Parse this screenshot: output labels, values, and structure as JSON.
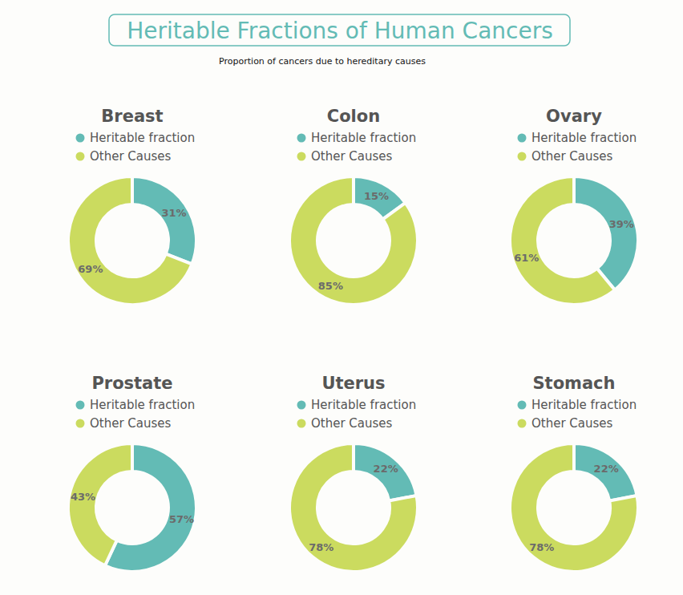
{
  "header": {
    "title": "Heritable Fractions of Human Cancers",
    "subtitle": "Proportion of cancers due to hereditary causes"
  },
  "chart_data": [
    {
      "type": "donut",
      "title": "Breast",
      "categories": [
        "Heritable fraction",
        "Other Causes"
      ],
      "values": [
        31,
        69
      ],
      "value_labels": [
        "31%",
        "69%"
      ],
      "colors": [
        "#63bbb5",
        "#cbdb5f"
      ],
      "data_labels": true,
      "legend": "top"
    },
    {
      "type": "donut",
      "title": "Colon",
      "categories": [
        "Heritable fraction",
        "Other Causes"
      ],
      "values": [
        15,
        85
      ],
      "value_labels": [
        "15%",
        "85%"
      ],
      "colors": [
        "#63bbb5",
        "#cbdb5f"
      ],
      "data_labels": true,
      "legend": "top"
    },
    {
      "type": "donut",
      "title": "Ovary",
      "categories": [
        "Heritable fraction",
        "Other Causes"
      ],
      "values": [
        39,
        61
      ],
      "value_labels": [
        "39%",
        "61%"
      ],
      "colors": [
        "#63bbb5",
        "#cbdb5f"
      ],
      "data_labels": true,
      "legend": "top"
    },
    {
      "type": "donut",
      "title": "Prostate",
      "categories": [
        "Heritable fraction",
        "Other Causes"
      ],
      "values": [
        57,
        43
      ],
      "value_labels": [
        "57%",
        "43%"
      ],
      "colors": [
        "#63bbb5",
        "#cbdb5f"
      ],
      "data_labels": true,
      "legend": "top"
    },
    {
      "type": "donut",
      "title": "Uterus",
      "categories": [
        "Heritable fraction",
        "Other Causes"
      ],
      "values": [
        22,
        78
      ],
      "value_labels": [
        "22%",
        "78%"
      ],
      "colors": [
        "#63bbb5",
        "#cbdb5f"
      ],
      "data_labels": true,
      "legend": "top"
    },
    {
      "type": "donut",
      "title": "Stomach",
      "categories": [
        "Heritable fraction",
        "Other Causes"
      ],
      "values": [
        22,
        78
      ],
      "value_labels": [
        "22%",
        "78%"
      ],
      "colors": [
        "#63bbb5",
        "#cbdb5f"
      ],
      "data_labels": true,
      "legend": "top"
    }
  ]
}
